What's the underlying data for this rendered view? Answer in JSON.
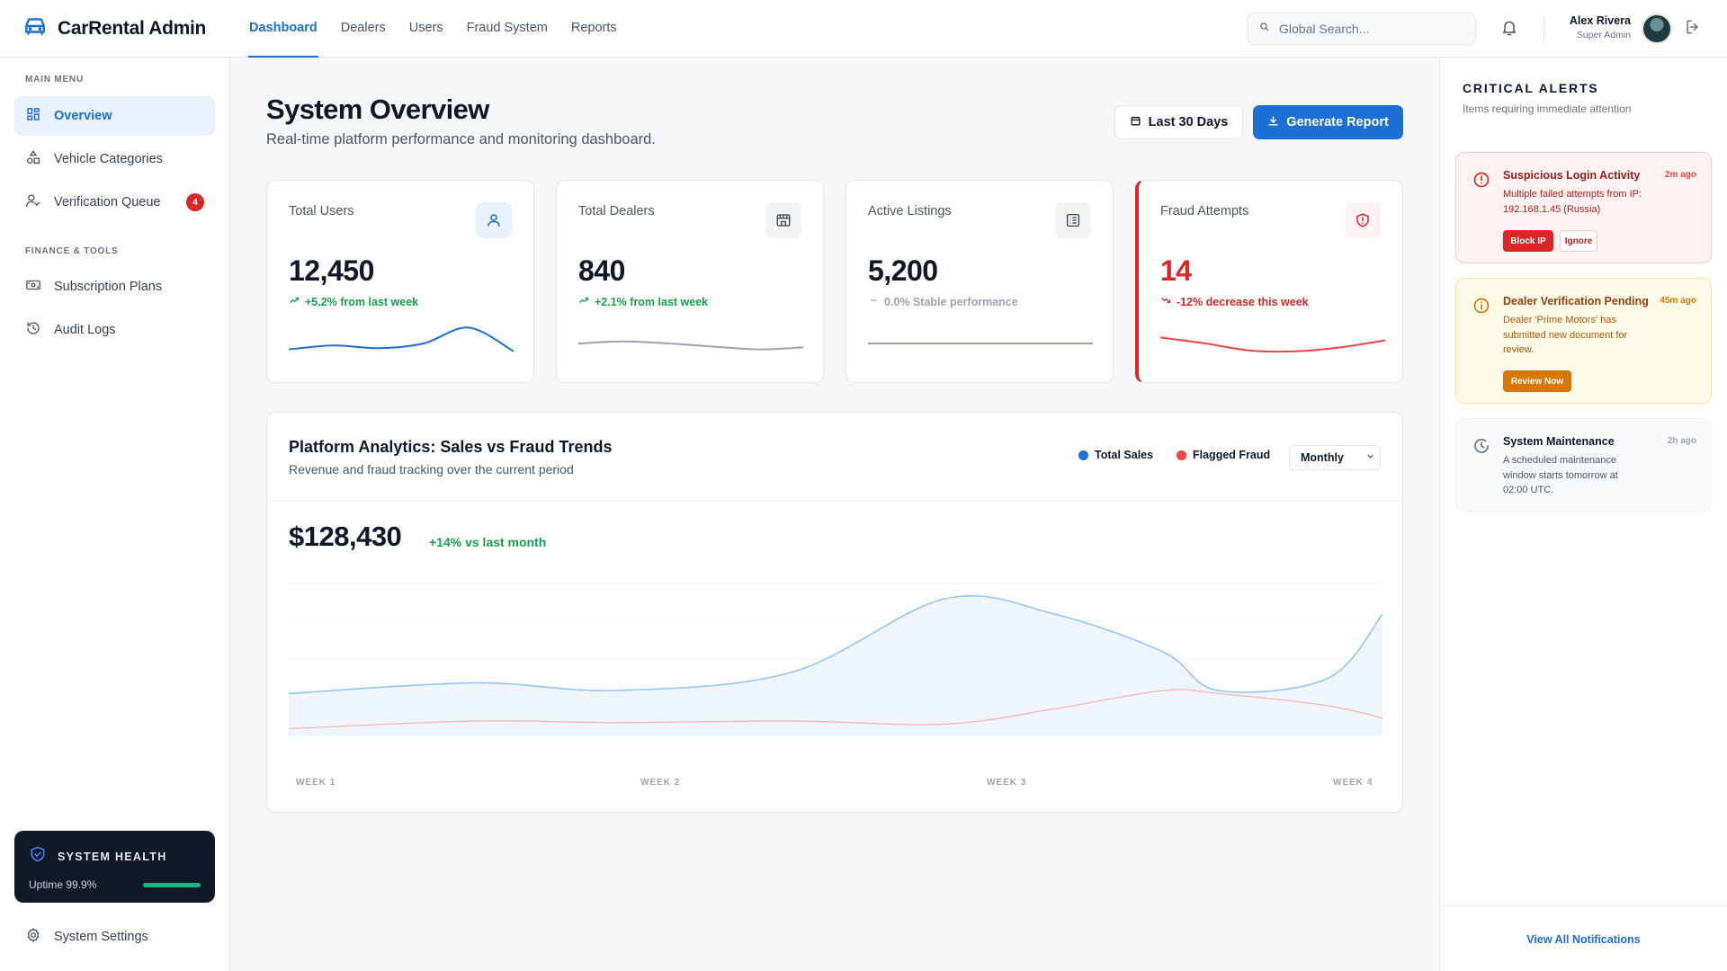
{
  "header": {
    "brand": "CarRental Admin",
    "nav": [
      "Dashboard",
      "Dealers",
      "Users",
      "Fraud System",
      "Reports"
    ],
    "search_placeholder": "Global Search...",
    "user": {
      "name": "Alex Rivera",
      "role": "Super Admin"
    }
  },
  "sidebar": {
    "main_label": "MAIN MENU",
    "main_items": [
      {
        "label": "Overview",
        "icon": "grid-icon"
      },
      {
        "label": "Vehicle Categories",
        "icon": "shapes-icon"
      },
      {
        "label": "Verification Queue",
        "icon": "user-check-icon",
        "badge": "4"
      }
    ],
    "tools_label": "FINANCE & TOOLS",
    "tools_items": [
      {
        "label": "Subscription Plans",
        "icon": "banknote-icon"
      },
      {
        "label": "Audit Logs",
        "icon": "history-icon"
      }
    ],
    "health": {
      "title": "SYSTEM HEALTH",
      "uptime": "Uptime 99.9%",
      "level": 0.999
    },
    "settings": "System Settings"
  },
  "main": {
    "title": "System Overview",
    "subtitle": "Real-time platform performance and monitoring dashboard.",
    "range_button": "Last 30 Days",
    "report_button": "Generate Report",
    "cards": [
      {
        "label": "Total Users",
        "value": "12,450",
        "trend": "+5.2% from last week",
        "trend_color": "#16a34a",
        "icon": "user-icon",
        "icon_bg": "#e8f1fd",
        "icon_color": "#1d6fd8",
        "spark_color": "#1d6fd8",
        "spark": [
          0.35,
          0.45,
          0.38,
          0.5,
          0.9,
          0.3
        ]
      },
      {
        "label": "Total Dealers",
        "value": "840",
        "trend": "+2.1% from last week",
        "trend_color": "#16a34a",
        "icon": "store-icon",
        "icon_bg": "#f3f4f6",
        "icon_color": "#374151",
        "spark_color": "#9ca3af",
        "spark": [
          0.5,
          0.55,
          0.5,
          0.42,
          0.35,
          0.4
        ]
      },
      {
        "label": "Active Listings",
        "value": "5,200",
        "trend": "0.0% Stable performance",
        "trend_color": "#9ca3af",
        "icon": "list-icon",
        "icon_bg": "#f3f4f6",
        "icon_color": "#374151",
        "spark_color": "#9ca3af",
        "spark": [
          0.5,
          0.5,
          0.5,
          0.5,
          0.5,
          0.5
        ]
      },
      {
        "label": "Fraud Attempts",
        "value": "14",
        "trend": "-12% decrease this week",
        "trend_color": "#dc2626",
        "icon": "shield-alert-icon",
        "icon_bg": "#fef2f2",
        "icon_color": "#dc2626",
        "spark_color": "#ef4444",
        "spark": [
          0.65,
          0.5,
          0.32,
          0.3,
          0.4,
          0.58
        ],
        "value_color": "#dc2626"
      }
    ],
    "analytics": {
      "title": "Platform Analytics: Sales vs Fraud Trends",
      "subtitle": "Revenue and fraud tracking over the current period",
      "legend": [
        "Total Sales",
        "Flagged Fraud"
      ],
      "period": "Monthly",
      "total": "$128,430",
      "change": "+14% vs last month"
    }
  },
  "chart_data": {
    "type": "area",
    "categories": [
      "WEEK 1",
      "WEEK 2",
      "WEEK 3",
      "WEEK 4"
    ],
    "x": [
      0,
      0.17,
      0.3,
      0.46,
      0.6,
      0.7,
      0.8,
      0.85,
      0.95,
      1.0
    ],
    "series": [
      {
        "name": "Total Sales",
        "color": "#1d6fd8",
        "values": [
          0.28,
          0.35,
          0.3,
          0.42,
          0.9,
          0.8,
          0.55,
          0.3,
          0.38,
          0.8
        ]
      },
      {
        "name": "Flagged Fraud",
        "color": "#ef4444",
        "values": [
          0.05,
          0.1,
          0.09,
          0.1,
          0.08,
          0.18,
          0.3,
          0.28,
          0.2,
          0.12
        ]
      }
    ],
    "ylim": [
      0,
      1
    ]
  },
  "alerts": {
    "title": "CRITICAL ALERTS",
    "subtitle": "Items requiring immediate attention",
    "items": [
      {
        "title": "Suspicious Login Activity",
        "time": "2m ago",
        "body": "Multiple failed attempts from IP: 192.168.1.45 (Russia)",
        "actions": [
          "Block IP",
          "Ignore"
        ]
      },
      {
        "title": "Dealer Verification Pending",
        "time": "45m ago",
        "body": "Dealer 'Prime Motors' has submitted new document for review.",
        "actions": [
          "Review Now"
        ]
      },
      {
        "title": "System Maintenance",
        "time": "2h ago",
        "body": "A scheduled maintenance window starts tomorrow at 02:00 UTC."
      }
    ],
    "view_all": "View All Notifications"
  }
}
